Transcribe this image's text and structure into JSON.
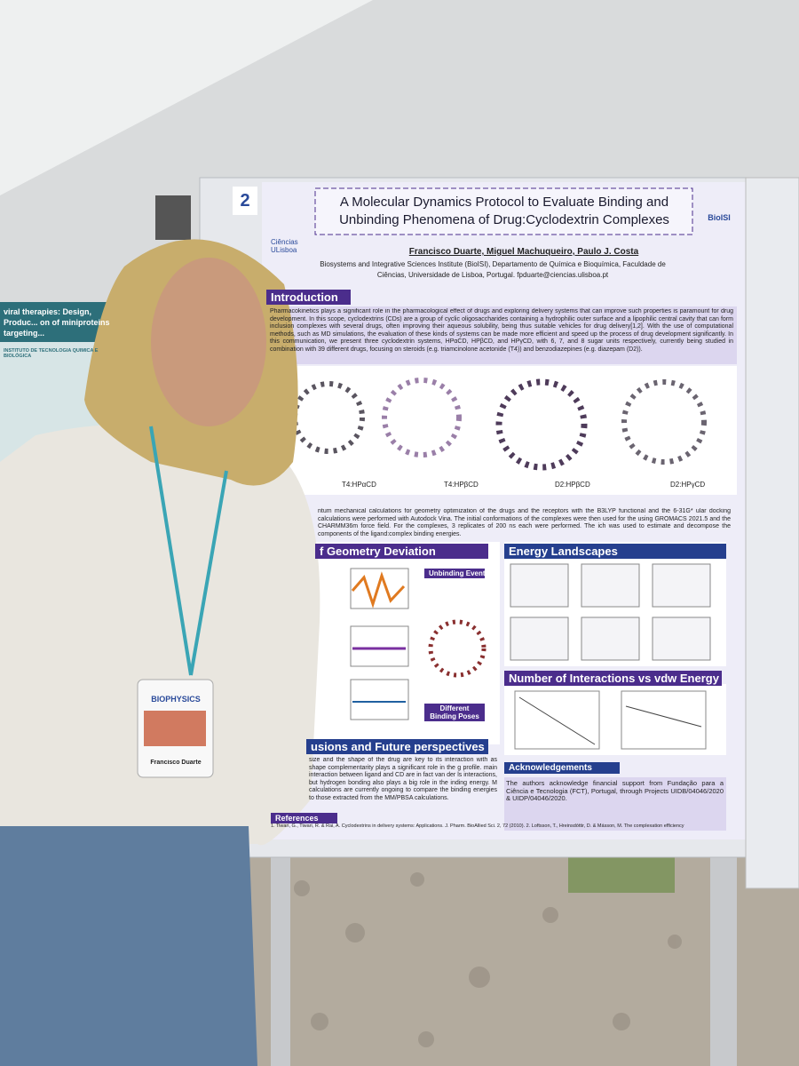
{
  "board_number": "2",
  "poster": {
    "title": "A Molecular Dynamics Protocol to Evaluate Binding and Unbinding Phenomena of Drug:Cyclodextrin Complexes",
    "authors": "Francisco Duarte, Miguel Machuqueiro, Paulo J. Costa",
    "affiliation": "Biosystems and Integrative Sciences Institute (BioISI), Departamento de Química e Bioquímica, Faculdade de Ciências, Universidade de Lisboa, Portugal. fpduarte@ciencias.ulisboa.pt",
    "logos": [
      "BioISI",
      "Ciências ULisboa"
    ],
    "introduction": {
      "heading": "Introduction",
      "text": "Pharmacokinetics plays a significant role in the pharmacological effect of drugs and exploring delivery systems that can improve such properties is paramount for drug development. In this scope, cyclodextrins (CDs) are a group of cyclic oligosaccharides containing a hydrophilic outer surface and a lipophilic central cavity that can form inclusion complexes with several drugs, often improving their aqueous solubility, being thus suitable vehicles for drug delivery[1,2]. With the use of computational methods, such as MD simulations, the evaluation of these kinds of systems can be made more efficient and speed up the process of drug development significantly. In this communication, we present three cyclodextrin systems, HPαCD, HPβCD, and HPγCD, with 6, 7, and 8 sugar units respectively, currently being studied in combination with 39 different drugs, focusing on steroids (e.g. triamcinolone acetonide (T4)) and benzodiazepines (e.g. diazepam (D2))."
    },
    "molecules": [
      "T4:HPαCD",
      "T4:HPβCD",
      "D2:HPβCD",
      "D2:HPγCD"
    ],
    "methods_text": "ntum mechanical calculations for geometry optimization of the drugs and the receptors with the B3LYP functional and the 6-31G* ular docking calculations were performed with Autodock Vina. The initial conformations of the complexes were then used for the using GROMACS 2021.5 and the CHARMM36m force field. For the complexes, 3 replicates of 200 ns each were performed. The ich was used to estimate and decompose the components of the ligand:complex binding energies.",
    "geometry": {
      "heading": "f Geometry Deviation",
      "labels": [
        "Unbinding Events",
        "Different Binding Poses"
      ]
    },
    "energy": {
      "heading": "Energy Landscapes"
    },
    "interactions": {
      "heading": "Number of Interactions vs vdw Energy"
    },
    "conclusions": {
      "heading": "usions and Future perspectives",
      "text": "size and the shape of the drug are key to its interaction with as shape complementarity plays a significant role in the g profile. main interaction between ligand and CD are in fact van der ls interactions, but hydrogen bonding also plays a big role in the inding energy. M calculations are currently ongoing to compare the binding energies to those extracted from the MM/PBSA calculations."
    },
    "acknowledgements": {
      "heading": "Acknowledgements",
      "text": "The authors acknowledge financial support from Fundação para a Ciência e Tecnologia (FCT), Portugal, through Projects UIDB/04046/2020 & UIDP/04046/2020."
    },
    "references": {
      "heading": "References",
      "text": "1. Tiwari, G., Tiwari, R. & Rai, A. Cyclodextrins in delivery systems: Applications. J. Pharm. BioAllied Sci. 2, 72 (2010). 2. Loftsson, T., Hreinsdóttir, D. & Másson, M. The complexation efficiency"
    }
  },
  "left_poster": {
    "title": "viral therapies: Design, Produc... on of miniproteins targeting...",
    "institute": "INSTITUTO DE TECNOLOGIA QUÍMICA E BIOLÓGICA"
  },
  "badge": {
    "event": "BIOPHYSICS",
    "name": "Francisco Duarte"
  }
}
